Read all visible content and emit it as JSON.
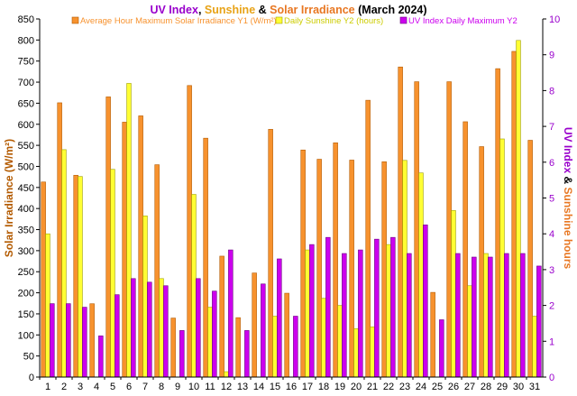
{
  "chart_data": {
    "type": "bar",
    "title_parts": [
      {
        "text": "UV Index",
        "color": "#9900CC"
      },
      {
        "text": ", ",
        "color": "#000000"
      },
      {
        "text": "Sunshine",
        "color": "#E8A317"
      },
      {
        "text": " & ",
        "color": "#000000"
      },
      {
        "text": "Solar Irradiance",
        "color": "#E87722"
      },
      {
        "text": " (March 2024)",
        "color": "#000000"
      }
    ],
    "ylabel_left": "Solar Irradiance (W/m²)",
    "ylabel_right_parts": [
      {
        "text": "UV Index",
        "color": "#9900CC"
      },
      {
        "text": " & ",
        "color": "#000000"
      },
      {
        "text": "Sunshine hours",
        "color": "#E87722"
      }
    ],
    "ylim_left": [
      0,
      850
    ],
    "ylim_right": [
      0,
      10
    ],
    "yticks_left": [
      0,
      50,
      100,
      150,
      200,
      250,
      300,
      350,
      400,
      450,
      500,
      550,
      600,
      650,
      700,
      750,
      800,
      850
    ],
    "yticks_right": [
      0,
      1,
      2,
      3,
      4,
      5,
      6,
      7,
      8,
      9,
      10
    ],
    "grid": false,
    "legend_position": "top",
    "categories": [
      "1",
      "2",
      "3",
      "4",
      "5",
      "6",
      "7",
      "8",
      "9",
      "10",
      "11",
      "12",
      "13",
      "14",
      "15",
      "16",
      "17",
      "18",
      "19",
      "20",
      "21",
      "22",
      "23",
      "24",
      "25",
      "26",
      "27",
      "28",
      "29",
      "30",
      "31"
    ],
    "series": [
      {
        "name": "Average Hour Maximum Solar Irradiance Y1 (W/m²)",
        "axis": "left",
        "color": "#F7922E",
        "stroke": "#B35A00",
        "values": [
          463,
          651,
          479,
          174,
          665,
          605,
          620,
          504,
          140,
          692,
          567,
          287,
          141,
          247,
          588,
          199,
          539,
          517,
          556,
          515,
          657,
          511,
          736,
          701,
          201,
          701,
          606,
          547,
          732,
          773,
          562
        ]
      },
      {
        "name": "Daily Sunshine Y2 (hours)",
        "axis": "right",
        "color": "#FFFF33",
        "stroke": "#A0A000",
        "values": [
          4.0,
          6.35,
          5.6,
          0.0,
          5.8,
          8.2,
          4.5,
          2.75,
          0.0,
          5.1,
          1.95,
          0.15,
          0.0,
          0.0,
          1.7,
          0.0,
          3.55,
          2.2,
          2.0,
          1.35,
          1.4,
          3.7,
          6.05,
          5.7,
          0.0,
          4.65,
          2.55,
          3.45,
          6.65,
          9.4,
          1.7
        ]
      },
      {
        "name": "UV Index Daily Maximum Y2",
        "axis": "right",
        "color": "#CC00EE",
        "stroke": "#6A0080",
        "values": [
          2.05,
          2.05,
          1.95,
          1.15,
          2.3,
          2.75,
          2.65,
          2.55,
          1.3,
          2.75,
          2.4,
          3.55,
          1.3,
          2.6,
          3.3,
          1.7,
          3.7,
          3.9,
          3.45,
          3.55,
          3.85,
          3.9,
          3.45,
          4.25,
          1.6,
          3.45,
          3.35,
          3.35,
          3.45,
          3.45,
          3.1
        ]
      }
    ]
  }
}
